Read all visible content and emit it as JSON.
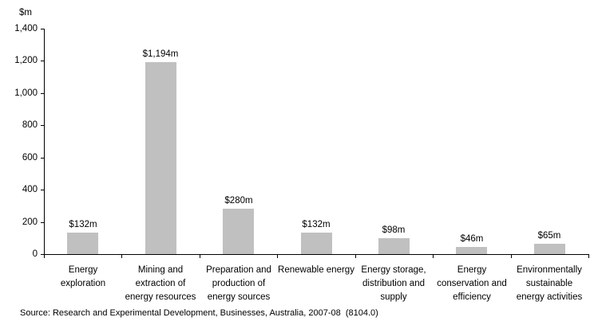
{
  "chart_data": {
    "type": "bar",
    "ylabel": "$m",
    "categories": [
      "Energy exploration",
      "Mining and extraction of energy resources",
      "Preparation and production of energy sources",
      "Renewable energy",
      "Energy storage, distribution and supply",
      "Energy conservation and efficiency",
      "Environmentally sustainable energy activities"
    ],
    "category_lines": [
      [
        "Energy",
        "exploration"
      ],
      [
        "Mining and",
        "extraction of",
        "energy resources"
      ],
      [
        "Preparation and",
        "production of",
        "energy sources"
      ],
      [
        "Renewable energy"
      ],
      [
        "Energy storage,",
        "distribution and",
        "supply"
      ],
      [
        "Energy",
        "conservation and",
        "efficiency"
      ],
      [
        "Environmentally",
        "sustainable",
        "energy activities"
      ]
    ],
    "values": [
      132,
      1194,
      280,
      132,
      98,
      46,
      65
    ],
    "bar_labels": [
      "$132m",
      "$1,194m",
      "$280m",
      "$132m",
      "$98m",
      "$46m",
      "$65m"
    ],
    "ylim": [
      0,
      1400
    ],
    "ytick_step": 200,
    "ytick_labels": [
      "0",
      "200",
      "400",
      "600",
      "800",
      "1,000",
      "1,200",
      "1,400"
    ],
    "bar_color": "#c0c0c0",
    "axis_color": "#000000",
    "grid": false,
    "legend_position": "none"
  },
  "source_note": "Source: Research and Experimental Development, Businesses, Australia, 2007-08  (8104.0)"
}
